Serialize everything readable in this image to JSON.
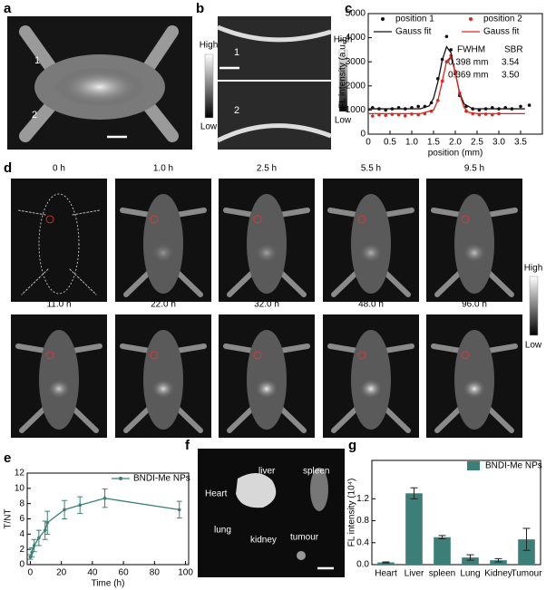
{
  "panels": {
    "a": {
      "label": "a",
      "markers": [
        "1",
        "2"
      ],
      "colorbar": {
        "high": "High",
        "low": "Low"
      }
    },
    "b": {
      "label": "b",
      "markers": [
        "1",
        "2"
      ],
      "colorbar": {
        "high": "High",
        "low": "Low"
      }
    },
    "d": {
      "label": "d",
      "times": [
        "0 h",
        "1.0 h",
        "2.5 h",
        "5.5 h",
        "9.5 h",
        "11.0 h",
        "22.0 h",
        "32.0 h",
        "48.0 h",
        "96.0 h"
      ],
      "colorbar": {
        "high": "High",
        "low": "Low"
      }
    },
    "f": {
      "label": "f",
      "organs": [
        "Heart",
        "liver",
        "spleen",
        "lung",
        "kidney",
        "tumour"
      ]
    }
  },
  "chart_data": [
    {
      "type": "line",
      "panel_label": "c",
      "xlabel": "position (mm)",
      "ylabel": "FL intensity (a.u.)",
      "xlim": [
        0,
        4
      ],
      "ylim": [
        0,
        5000
      ],
      "xticks": [
        0,
        0.5,
        {
          "value": 1,
          "label": "1.0"
        },
        1.5,
        {
          "value": 2,
          "label": "2.0"
        },
        2.5,
        {
          "value": 3,
          "label": "3.0"
        },
        3.5
      ],
      "yticks": [
        0,
        1000,
        2000,
        3000,
        4000,
        5000
      ],
      "legend": "upper left",
      "legend_columns": 2,
      "series": [
        {
          "name": "position 1",
          "color": "#111111",
          "kind": "markers",
          "x": [
            0.1,
            0.25,
            0.4,
            0.55,
            0.7,
            0.85,
            1.0,
            1.15,
            1.3,
            1.45,
            1.6,
            1.7,
            1.8,
            1.9,
            2.0,
            2.1,
            2.25,
            2.4,
            2.55,
            2.7,
            2.85,
            3.0,
            3.15,
            3.3,
            3.5,
            3.7
          ],
          "values": [
            1100,
            1050,
            1000,
            1050,
            1100,
            1050,
            1100,
            1150,
            1150,
            1300,
            2300,
            3100,
            4050,
            3500,
            2500,
            1600,
            1150,
            1050,
            1000,
            1050,
            1100,
            1050,
            1100,
            1050,
            1150,
            1200
          ]
        },
        {
          "name": "position 2",
          "color": "#e0251b",
          "kind": "markers",
          "x": [
            0.1,
            0.25,
            0.4,
            0.55,
            0.7,
            0.85,
            1.0,
            1.15,
            1.3,
            1.45,
            1.6,
            1.7,
            1.8,
            1.9,
            2.0,
            2.1,
            2.25,
            2.4,
            2.55,
            2.7,
            2.85,
            3.0
          ],
          "values": [
            750,
            800,
            780,
            820,
            800,
            760,
            830,
            800,
            850,
            950,
            1400,
            2200,
            3000,
            3250,
            2600,
            1700,
            950,
            850,
            800,
            830,
            800,
            850
          ]
        },
        {
          "name": "Gauss fit",
          "color": "#111111",
          "kind": "line",
          "x": [
            0,
            0.4,
            0.8,
            1.2,
            1.4,
            1.5,
            1.6,
            1.7,
            1.8,
            1.9,
            2.0,
            2.1,
            2.2,
            2.4,
            2.8,
            3.2,
            3.6
          ],
          "values": [
            1050,
            1050,
            1050,
            1052,
            1170,
            1484,
            2165,
            3070,
            3625,
            3375,
            2527,
            1710,
            1258,
            1052,
            1050,
            1050,
            1050
          ]
        },
        {
          "name": "Gauss fit",
          "color": "#e0251b",
          "kind": "line",
          "x": [
            0,
            0.4,
            0.8,
            1.2,
            1.5,
            1.6,
            1.7,
            1.8,
            1.9,
            2.0,
            2.1,
            2.2,
            2.3,
            2.5,
            2.8,
            3.2,
            3.6
          ],
          "values": [
            850,
            850,
            850,
            850,
            999,
            1397,
            2187,
            3022,
            3207,
            2554,
            1671,
            1114,
            908,
            852,
            850,
            850,
            850
          ]
        }
      ],
      "table": {
        "header_color": "#2e8b7e",
        "header": [
          "FWHM",
          "SBR"
        ],
        "rows": [
          [
            "0.398 mm",
            "3.54"
          ],
          [
            "0.369 mm",
            "3.50"
          ]
        ],
        "row_colors": [
          "#111111",
          "#e0251b"
        ]
      }
    },
    {
      "type": "line",
      "panel_label": "e",
      "xlabel": "Time (h)",
      "ylabel": "T/NT",
      "xlim": [
        -2,
        102
      ],
      "ylim": [
        0,
        12
      ],
      "xticks": [
        0,
        20,
        40,
        60,
        80,
        100
      ],
      "yticks": [
        0,
        2,
        4,
        6,
        8,
        10,
        12
      ],
      "legend": "upper right",
      "legend_columns": 1,
      "series": [
        {
          "name": "BNDI-Me NPs",
          "color": "#3b7f78",
          "kind": "line+markers",
          "x": [
            0,
            1,
            2.5,
            5.5,
            9.5,
            11,
            22,
            32,
            48,
            96
          ],
          "values": [
            1.0,
            1.6,
            2.5,
            3.5,
            4.5,
            5.5,
            7.2,
            7.8,
            8.7,
            7.2
          ],
          "errors": [
            0.3,
            0.6,
            0.8,
            1.0,
            1.2,
            1.5,
            1.2,
            1.1,
            1.2,
            1.1
          ]
        }
      ]
    },
    {
      "type": "bar",
      "panel_label": "g",
      "ylabel": "FL intensity (10⁴)",
      "ylim": [
        0,
        1.9
      ],
      "yticks": [
        {
          "value": 0,
          "label": "0.0"
        },
        0.4,
        0.8,
        1.2
      ],
      "legend": "upper right",
      "legend_columns": 1,
      "series": [
        {
          "name": "BNDI-Me NPs",
          "color": "#3b7f78",
          "values": [
            0.04,
            1.3,
            0.5,
            0.13,
            0.08,
            0.46
          ],
          "errors": [
            0.01,
            0.1,
            0.03,
            0.05,
            0.03,
            0.2
          ]
        }
      ],
      "categories": [
        "Heart",
        "Liver",
        "spleen",
        "Lung",
        "Kidney",
        "Tumour"
      ]
    }
  ]
}
